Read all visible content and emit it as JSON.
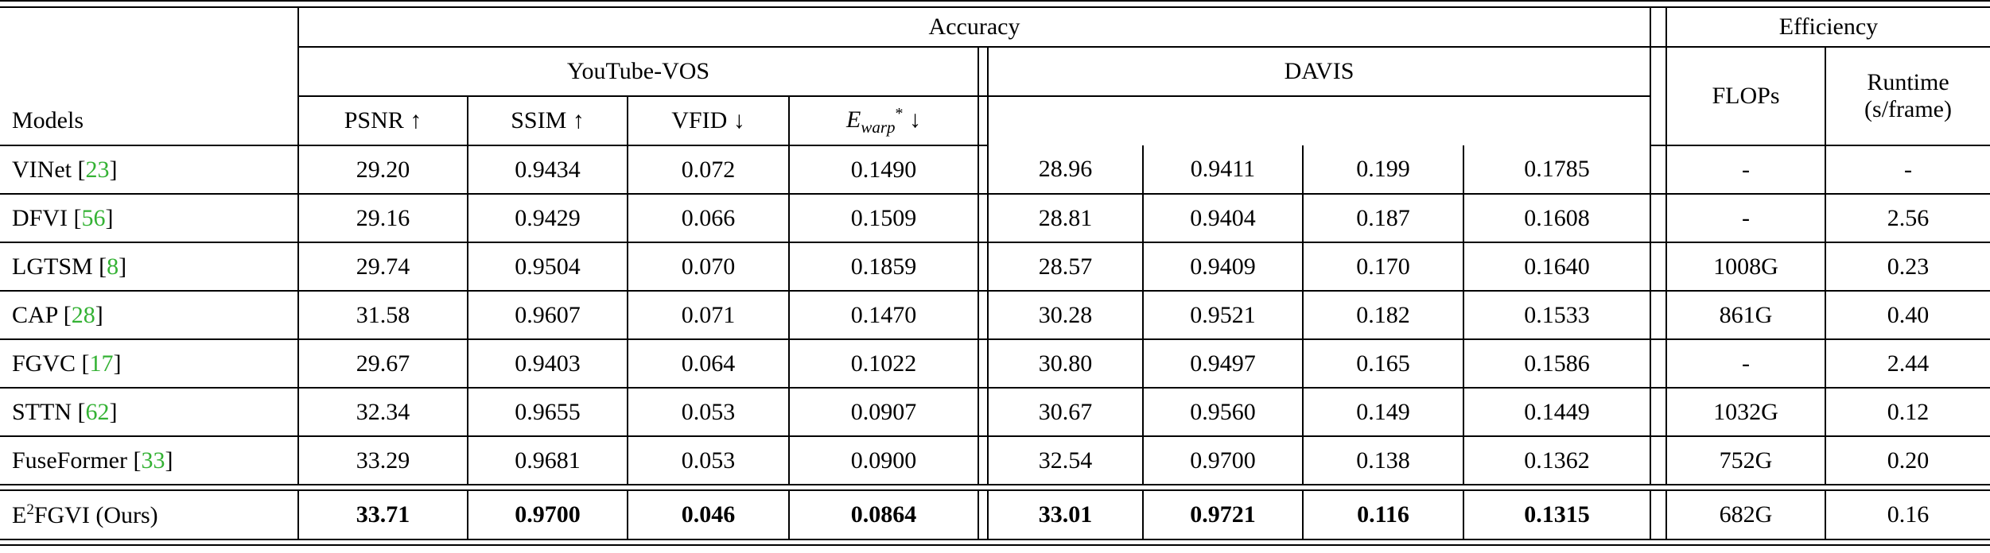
{
  "colors": {
    "ref_green": "#34b234",
    "border_black": "#000000",
    "text_black": "#000000",
    "background_white": "#ffffff"
  },
  "header": {
    "models_label": "Models",
    "accuracy": "Accuracy",
    "efficiency": "Efficiency",
    "youtube_vos": "YouTube-VOS",
    "davis": "DAVIS",
    "flops": "FLOPs",
    "runtime_line1": "Runtime",
    "runtime_line2": "(s/frame)",
    "metrics": [
      {
        "name": "PSNR",
        "arrow": "↑",
        "italic": false
      },
      {
        "name": "SSIM",
        "arrow": "↑",
        "italic": false
      },
      {
        "name": "VFID",
        "arrow": "↓",
        "italic": false
      },
      {
        "name": "E",
        "sub": "warp",
        "sup": "*",
        "arrow": "↓",
        "italic": true
      }
    ]
  },
  "rows": [
    {
      "model": "VINet",
      "ref": "23",
      "youtube_vos": [
        "29.20",
        "0.9434",
        "0.072",
        "0.1490"
      ],
      "davis": [
        "28.96",
        "0.9411",
        "0.199",
        "0.1785"
      ],
      "flops": "-",
      "runtime": "-"
    },
    {
      "model": "DFVI",
      "ref": "56",
      "youtube_vos": [
        "29.16",
        "0.9429",
        "0.066",
        "0.1509"
      ],
      "davis": [
        "28.81",
        "0.9404",
        "0.187",
        "0.1608"
      ],
      "flops": "-",
      "runtime": "2.56"
    },
    {
      "model": "LGTSM",
      "ref": "8",
      "youtube_vos": [
        "29.74",
        "0.9504",
        "0.070",
        "0.1859"
      ],
      "davis": [
        "28.57",
        "0.9409",
        "0.170",
        "0.1640"
      ],
      "flops": "1008G",
      "runtime": "0.23"
    },
    {
      "model": "CAP",
      "ref": "28",
      "youtube_vos": [
        "31.58",
        "0.9607",
        "0.071",
        "0.1470"
      ],
      "davis": [
        "30.28",
        "0.9521",
        "0.182",
        "0.1533"
      ],
      "flops": "861G",
      "runtime": "0.40"
    },
    {
      "model": "FGVC",
      "ref": "17",
      "youtube_vos": [
        "29.67",
        "0.9403",
        "0.064",
        "0.1022"
      ],
      "davis": [
        "30.80",
        "0.9497",
        "0.165",
        "0.1586"
      ],
      "flops": "-",
      "runtime": "2.44"
    },
    {
      "model": "STTN",
      "ref": "62",
      "youtube_vos": [
        "32.34",
        "0.9655",
        "0.053",
        "0.0907"
      ],
      "davis": [
        "30.67",
        "0.9560",
        "0.149",
        "0.1449"
      ],
      "flops": "1032G",
      "runtime": "0.12"
    },
    {
      "model": "FuseFormer",
      "ref": "33",
      "youtube_vos": [
        "33.29",
        "0.9681",
        "0.053",
        "0.0900"
      ],
      "davis": [
        "32.54",
        "0.9700",
        "0.138",
        "0.1362"
      ],
      "flops": "752G",
      "runtime": "0.20"
    }
  ],
  "ours_row": {
    "model_prefix": "E",
    "model_sup": "2",
    "model_suffix": "FGVI (Ours)",
    "youtube_vos": [
      "33.71",
      "0.9700",
      "0.046",
      "0.0864"
    ],
    "davis": [
      "33.01",
      "0.9721",
      "0.116",
      "0.1315"
    ],
    "flops": "682G",
    "runtime": "0.16"
  }
}
